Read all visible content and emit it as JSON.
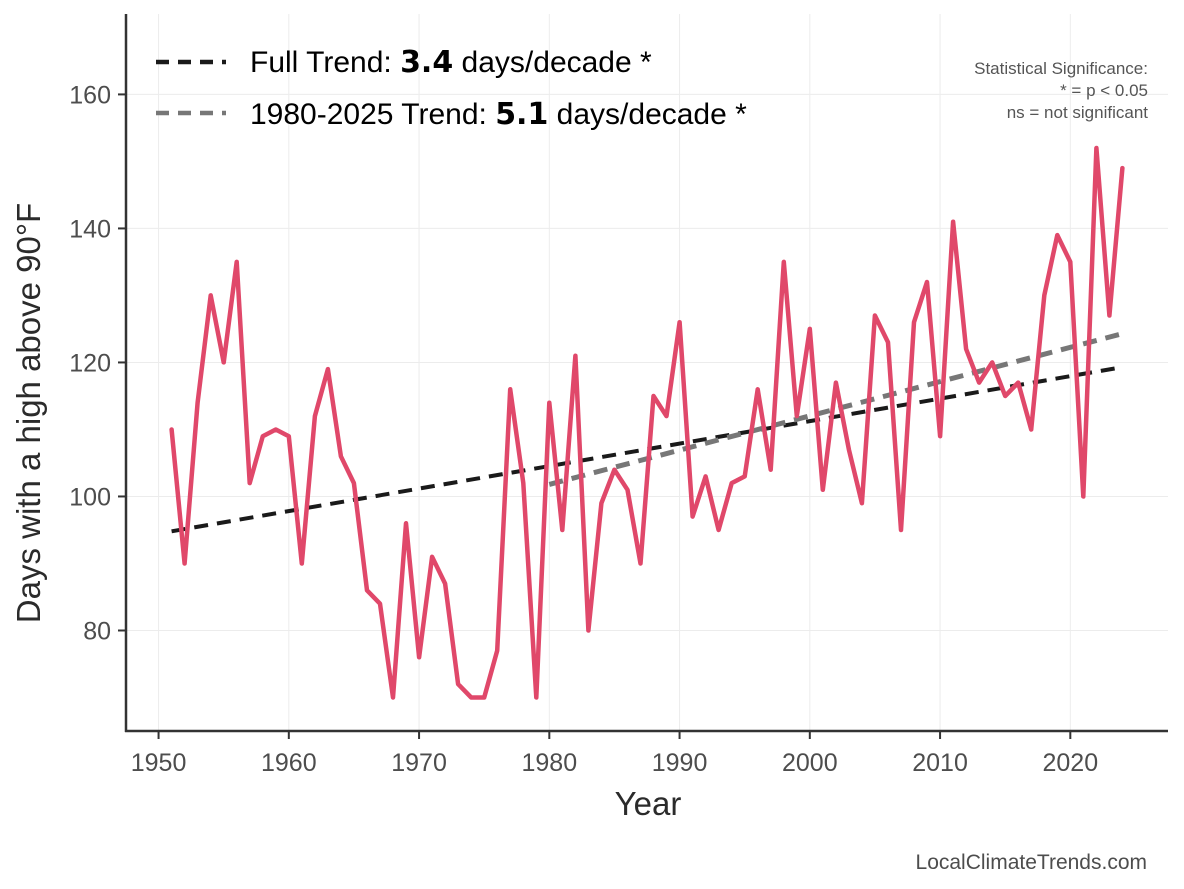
{
  "chart_data": {
    "type": "line",
    "xlabel": "Year",
    "ylabel": "Days with a high above 90°F",
    "xlim": [
      1947.5,
      2027.5
    ],
    "ylim": [
      65,
      172
    ],
    "x_ticks": [
      1950,
      1960,
      1970,
      1980,
      1990,
      2000,
      2010,
      2020
    ],
    "y_ticks": [
      80,
      100,
      120,
      140,
      160
    ],
    "grid": true,
    "legend_position": "top-left",
    "series": [
      {
        "color": "#e0486a",
        "x": [
          1951,
          1952,
          1953,
          1954,
          1955,
          1956,
          1957,
          1958,
          1959,
          1960,
          1961,
          1962,
          1963,
          1964,
          1965,
          1966,
          1967,
          1968,
          1969,
          1970,
          1971,
          1972,
          1973,
          1974,
          1975,
          1976,
          1977,
          1978,
          1979,
          1980,
          1981,
          1982,
          1983,
          1984,
          1985,
          1986,
          1987,
          1988,
          1989,
          1990,
          1991,
          1992,
          1993,
          1994,
          1995,
          1996,
          1997,
          1998,
          1999,
          2000,
          2001,
          2002,
          2003,
          2004,
          2005,
          2006,
          2007,
          2008,
          2009,
          2010,
          2011,
          2012,
          2013,
          2014,
          2015,
          2016,
          2017,
          2018,
          2019,
          2020,
          2021,
          2022,
          2023,
          2024
        ],
        "y": [
          110,
          90,
          114,
          130,
          120,
          135,
          102,
          109,
          110,
          109,
          90,
          112,
          119,
          106,
          102,
          86,
          84,
          70,
          96,
          76,
          91,
          87,
          72,
          70,
          70,
          77,
          116,
          102,
          70,
          114,
          95,
          121,
          80,
          99,
          104,
          101,
          90,
          115,
          112,
          126,
          97,
          103,
          95,
          102,
          103,
          116,
          104,
          135,
          112,
          125,
          101,
          117,
          107,
          99,
          127,
          123,
          95,
          126,
          132,
          109,
          141,
          122,
          117,
          120,
          115,
          117,
          110,
          130,
          139,
          135,
          100,
          152,
          127,
          149
        ]
      }
    ],
    "trend_lines": [
      {
        "label_prefix": "Full Trend: ",
        "label_value": "3.4",
        "label_suffix": " days/decade *",
        "x": [
          1951,
          2024
        ],
        "y": [
          94.8,
          119.3
        ],
        "color": "#1a1a1a",
        "style": "dashed"
      },
      {
        "label_prefix": "1980-2025 Trend: ",
        "label_value": "5.1",
        "label_suffix": " days/decade *",
        "x": [
          1980,
          2024
        ],
        "y": [
          101.8,
          124.3
        ],
        "color": "#777777",
        "style": "dashed"
      }
    ],
    "annotation": {
      "lines": [
        "Statistical Significance:",
        "* = p < 0.05",
        "ns = not significant"
      ]
    },
    "source": "LocalClimateTrends.com"
  }
}
